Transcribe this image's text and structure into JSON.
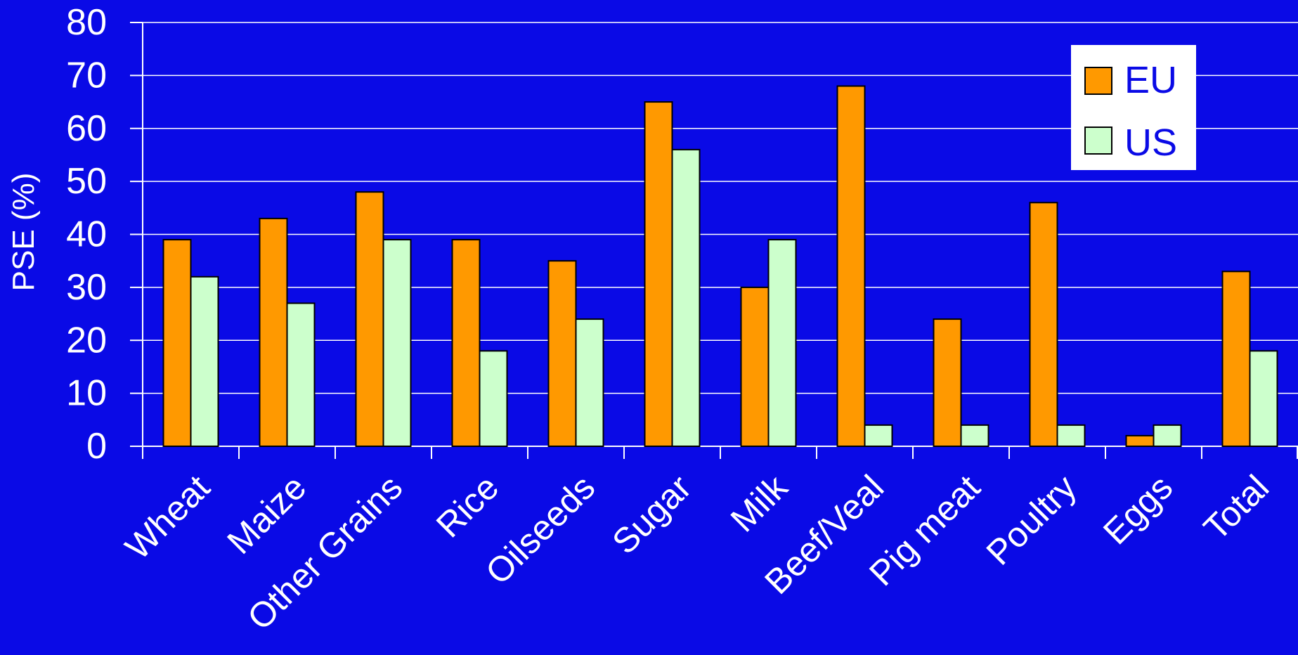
{
  "chart_data": {
    "type": "bar",
    "title": "",
    "xlabel": "",
    "ylabel": "PSE (%)",
    "ylim": [
      0,
      80
    ],
    "yticks": [
      0,
      10,
      20,
      30,
      40,
      50,
      60,
      70,
      80
    ],
    "grid": true,
    "legend_position": "top-right",
    "categories": [
      "Wheat",
      "Maize",
      "Other Grains",
      "Rice",
      "Oilseeds",
      "Sugar",
      "Milk",
      "Beef/Veal",
      "Pig meat",
      "Poultry",
      "Eggs",
      "Total"
    ],
    "series": [
      {
        "name": "EU",
        "color": "#FF9900",
        "values": [
          39,
          43,
          48,
          39,
          35,
          65,
          30,
          68,
          24,
          46,
          2,
          33
        ]
      },
      {
        "name": "US",
        "color": "#CCFFCC",
        "values": [
          32,
          27,
          39,
          18,
          24,
          56,
          39,
          4,
          4,
          4,
          4,
          18
        ]
      }
    ],
    "background_color": "#0A0AE6",
    "text_color": "#FFFFFF",
    "legend_text_color": "#0A0AE6"
  }
}
